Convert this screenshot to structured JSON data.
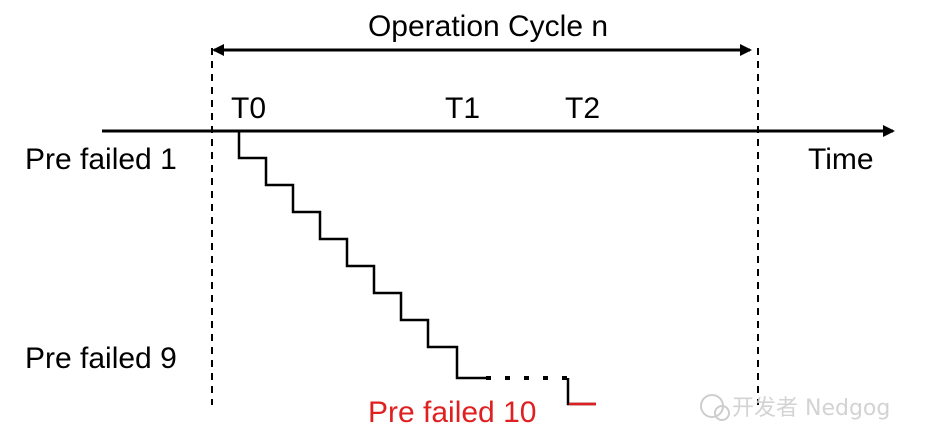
{
  "cycle_label": "Operation Cycle n",
  "time_label": "Time",
  "markers": {
    "t0": "T0",
    "t1": "T1",
    "t2": "T2"
  },
  "pre_failed": {
    "first": "Pre failed 1",
    "ninth": "Pre failed 9",
    "tenth": "Pre failed 10"
  },
  "watermark": "开发者 Nedgog",
  "colors": {
    "line": "#000000",
    "highlight": "#e02020"
  }
}
